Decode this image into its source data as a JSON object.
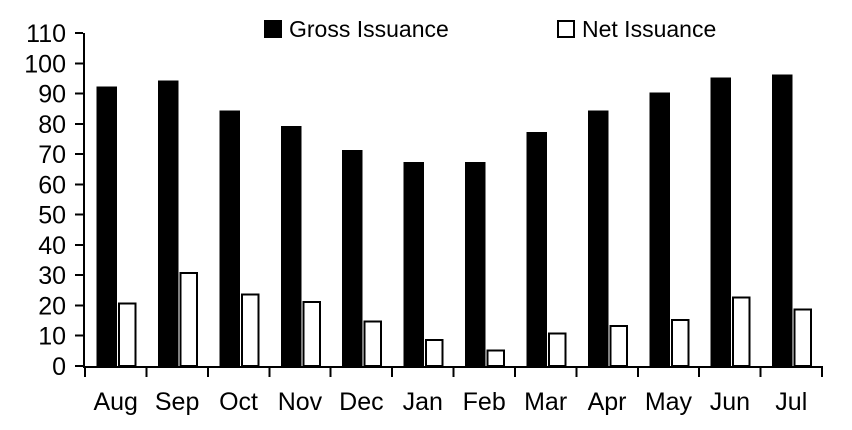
{
  "chart_data": {
    "type": "bar",
    "title": "",
    "xlabel": "",
    "ylabel": "",
    "categories": [
      "Aug",
      "Sep",
      "Oct",
      "Nov",
      "Dec",
      "Jan",
      "Feb",
      "Mar",
      "Apr",
      "May",
      "Jun",
      "Jul"
    ],
    "series": [
      {
        "name": "Gross Issuance",
        "fill": "#000000",
        "stroke": "#000000",
        "values": [
          92,
          94,
          84,
          79,
          71,
          67,
          67,
          77,
          84,
          90,
          95,
          96
        ]
      },
      {
        "name": "Net Issuance",
        "fill": "#ffffff",
        "stroke": "#000000",
        "values": [
          21,
          31,
          24,
          21.5,
          15,
          9,
          5.5,
          11,
          13.5,
          15.5,
          23,
          19
        ]
      }
    ],
    "ylim": [
      0,
      110
    ],
    "yticks": [
      0,
      10,
      20,
      30,
      40,
      50,
      60,
      70,
      80,
      90,
      100,
      110
    ],
    "grid": false,
    "legend_position": "top",
    "background_color": "#ffffff",
    "axis_color": "#000000"
  }
}
